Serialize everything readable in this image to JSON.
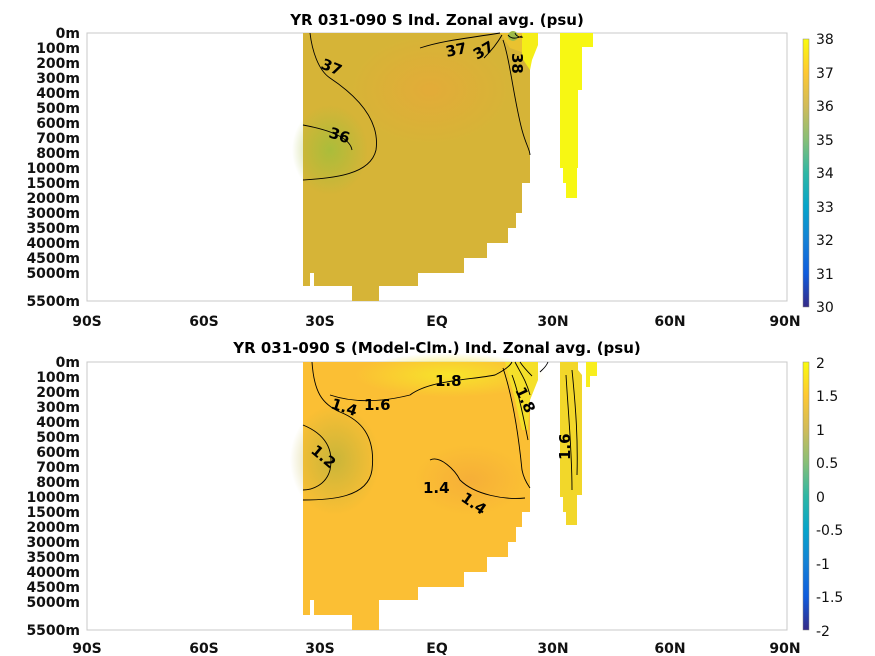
{
  "chart_data": [
    {
      "type": "heatmap",
      "title": "YR 031-090 S Ind. Zonal avg. (psu)",
      "x_ticks": [
        "90S",
        "60S",
        "30S",
        "EQ",
        "30N",
        "60N",
        "90N"
      ],
      "y_ticks": [
        "0m",
        "100m",
        "200m",
        "300m",
        "400m",
        "500m",
        "600m",
        "700m",
        "800m",
        "1000m",
        "1500m",
        "2000m",
        "3000m",
        "3500m",
        "4000m",
        "4500m",
        "5000m",
        "5500m"
      ],
      "colorbar": {
        "ticks": [
          "38",
          "37",
          "36",
          "35",
          "34",
          "33",
          "32",
          "31",
          "30"
        ],
        "range": [
          30,
          38
        ]
      },
      "contour_labels": [
        "37",
        "37",
        "37",
        "38",
        "36"
      ]
    },
    {
      "type": "heatmap",
      "title": "YR 031-090 S (Model-Clm.) Ind. Zonal avg. (psu)",
      "x_ticks": [
        "90S",
        "60S",
        "30S",
        "EQ",
        "30N",
        "60N",
        "90N"
      ],
      "y_ticks": [
        "0m",
        "100m",
        "200m",
        "300m",
        "400m",
        "500m",
        "600m",
        "700m",
        "800m",
        "1000m",
        "1500m",
        "2000m",
        "3000m",
        "3500m",
        "4000m",
        "4500m",
        "5000m",
        "5500m"
      ],
      "colorbar": {
        "ticks": [
          "2",
          "1.5",
          "1",
          "0.5",
          "0",
          "-0.5",
          "-1",
          "-1.5",
          "-2"
        ],
        "range": [
          -2,
          2
        ]
      },
      "contour_labels": [
        "1.8",
        "1.4",
        "1.6",
        "1.2",
        "1.4",
        "1.4",
        "1.6",
        "1.8"
      ]
    }
  ]
}
